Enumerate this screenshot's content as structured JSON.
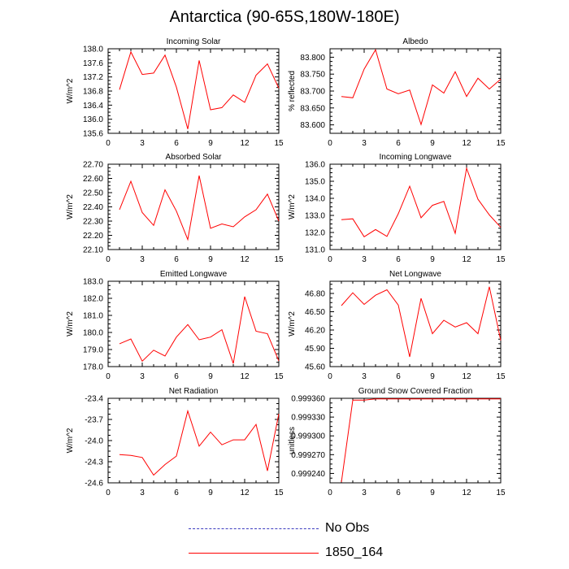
{
  "title": "Antarctica (90-65S,180W-180E)",
  "colors": {
    "model": "#ff0000",
    "obs": "#3b3bbf",
    "axis": "#000000"
  },
  "legend": [
    {
      "label": "No Obs",
      "style": "dashed",
      "color": "#3b3bbf"
    },
    {
      "label": "1850_164",
      "style": "solid",
      "color": "#ff0000"
    }
  ],
  "chart_data": [
    {
      "type": "line",
      "title": "Incoming Solar",
      "ylabel": "W/m^2",
      "xlim": [
        0,
        15
      ],
      "xticks": [
        0,
        3,
        6,
        9,
        12,
        15
      ],
      "ylim": [
        135.6,
        138.0
      ],
      "yticks": [
        "135.6",
        "136.0",
        "136.4",
        "136.8",
        "137.2",
        "137.6",
        "138.0"
      ],
      "series": [
        {
          "name": "1850_164",
          "color": "#ff0000",
          "x": [
            1,
            2,
            3,
            4,
            5,
            6,
            7,
            8,
            9,
            10,
            11,
            12,
            13,
            14,
            15
          ],
          "y": [
            136.84,
            137.91,
            137.27,
            137.31,
            137.82,
            136.91,
            135.72,
            137.67,
            136.27,
            136.33,
            136.69,
            136.48,
            137.25,
            137.57,
            136.88
          ]
        }
      ]
    },
    {
      "type": "line",
      "title": "Albedo",
      "ylabel": "% reflected",
      "xlim": [
        0,
        15
      ],
      "xticks": [
        0,
        3,
        6,
        9,
        12,
        15
      ],
      "ylim": [
        83.575,
        83.825
      ],
      "yticks": [
        "83.600",
        "83.650",
        "83.700",
        "83.750",
        "83.800"
      ],
      "series": [
        {
          "name": "1850_164",
          "color": "#ff0000",
          "x": [
            1,
            2,
            3,
            4,
            5,
            6,
            7,
            8,
            9,
            10,
            11,
            12,
            13,
            14,
            15
          ],
          "y": [
            83.684,
            83.68,
            83.765,
            83.822,
            83.706,
            83.692,
            83.703,
            83.601,
            83.718,
            83.694,
            83.757,
            83.684,
            83.738,
            83.706,
            83.735
          ]
        }
      ]
    },
    {
      "type": "line",
      "title": "Absorbed Solar",
      "ylabel": "W/m^2",
      "xlim": [
        0,
        15
      ],
      "xticks": [
        0,
        3,
        6,
        9,
        12,
        15
      ],
      "ylim": [
        22.1,
        22.7
      ],
      "yticks": [
        "22.10",
        "22.20",
        "22.30",
        "22.40",
        "22.50",
        "22.60",
        "22.70"
      ],
      "series": [
        {
          "name": "1850_164",
          "color": "#ff0000",
          "x": [
            1,
            2,
            3,
            4,
            5,
            6,
            7,
            8,
            9,
            10,
            11,
            12,
            13,
            14,
            15
          ],
          "y": [
            22.38,
            22.58,
            22.36,
            22.27,
            22.52,
            22.37,
            22.17,
            22.62,
            22.25,
            22.28,
            22.26,
            22.33,
            22.38,
            22.49,
            22.3
          ]
        }
      ]
    },
    {
      "type": "line",
      "title": "Incoming Longwave",
      "ylabel": "W/m^2",
      "xlim": [
        0,
        15
      ],
      "xticks": [
        0,
        3,
        6,
        9,
        12,
        15
      ],
      "ylim": [
        131.0,
        136.0
      ],
      "yticks": [
        "131.0",
        "132.0",
        "133.0",
        "134.0",
        "135.0",
        "136.0"
      ],
      "series": [
        {
          "name": "1850_164",
          "color": "#ff0000",
          "x": [
            1,
            2,
            3,
            4,
            5,
            6,
            7,
            8,
            9,
            10,
            11,
            12,
            13,
            14,
            15
          ],
          "y": [
            132.75,
            132.8,
            131.75,
            132.17,
            131.77,
            133.1,
            134.71,
            132.86,
            133.59,
            133.82,
            131.95,
            135.76,
            133.95,
            133.03,
            132.3
          ]
        }
      ]
    },
    {
      "type": "line",
      "title": "Emitted Longwave",
      "ylabel": "W/m^2",
      "xlim": [
        0,
        15
      ],
      "xticks": [
        0,
        3,
        6,
        9,
        12,
        15
      ],
      "ylim": [
        178.0,
        183.0
      ],
      "yticks": [
        "178.0",
        "179.0",
        "180.0",
        "181.0",
        "182.0",
        "183.0"
      ],
      "series": [
        {
          "name": "1850_164",
          "color": "#ff0000",
          "x": [
            1,
            2,
            3,
            4,
            5,
            6,
            7,
            8,
            9,
            10,
            11,
            12,
            13,
            14,
            15
          ],
          "y": [
            179.34,
            179.62,
            178.32,
            178.96,
            178.62,
            179.73,
            180.46,
            179.57,
            179.73,
            180.16,
            178.18,
            182.1,
            180.07,
            179.93,
            178.33
          ]
        }
      ]
    },
    {
      "type": "line",
      "title": "Net Longwave",
      "ylabel": "W/m^2",
      "xlim": [
        0,
        15
      ],
      "xticks": [
        0,
        3,
        6,
        9,
        12,
        15
      ],
      "ylim": [
        45.6,
        47.0
      ],
      "yticks": [
        "45.60",
        "45.90",
        "46.20",
        "46.50",
        "46.80"
      ],
      "series": [
        {
          "name": "1850_164",
          "color": "#ff0000",
          "x": [
            1,
            2,
            3,
            4,
            5,
            6,
            7,
            8,
            9,
            10,
            11,
            12,
            13,
            14,
            15
          ],
          "y": [
            46.6,
            46.81,
            46.62,
            46.77,
            46.86,
            46.61,
            45.76,
            46.72,
            46.14,
            46.36,
            46.25,
            46.32,
            46.14,
            46.91,
            46.03
          ]
        }
      ]
    },
    {
      "type": "line",
      "title": "Net Radiation",
      "ylabel": "W/m^2",
      "xlim": [
        0,
        15
      ],
      "xticks": [
        0,
        3,
        6,
        9,
        12,
        15
      ],
      "ylim": [
        -24.6,
        -23.4
      ],
      "yticks": [
        "-24.6",
        "-24.3",
        "-24.0",
        "-23.7",
        "-23.4"
      ],
      "series": [
        {
          "name": "1850_164",
          "color": "#ff0000",
          "x": [
            1,
            2,
            3,
            4,
            5,
            6,
            7,
            8,
            9,
            10,
            11,
            12,
            13,
            14,
            15
          ],
          "y": [
            -24.2,
            -24.21,
            -24.24,
            -24.49,
            -24.34,
            -24.22,
            -23.58,
            -24.08,
            -23.88,
            -24.06,
            -23.99,
            -23.99,
            -23.77,
            -24.43,
            -23.62
          ]
        }
      ]
    },
    {
      "type": "line",
      "title": "Ground Snow Covered Fraction",
      "ylabel": "unitless",
      "xlim": [
        0,
        15
      ],
      "xticks": [
        0,
        3,
        6,
        9,
        12,
        15
      ],
      "ylim": [
        0.999225,
        0.99936
      ],
      "yticks": [
        "0.999240",
        "0.999270",
        "0.999300",
        "0.999330",
        "0.999360"
      ],
      "series": [
        {
          "name": "1850_164",
          "color": "#ff0000",
          "x": [
            1,
            2,
            3,
            4,
            5,
            6,
            7,
            8,
            9,
            10,
            11,
            12,
            13,
            14,
            15
          ],
          "y": [
            0.999226,
            0.999357,
            0.999357,
            0.999359,
            0.999359,
            0.999359,
            0.999359,
            0.999359,
            0.999359,
            0.999359,
            0.999359,
            0.999359,
            0.999359,
            0.999359,
            0.999359
          ]
        }
      ]
    }
  ]
}
